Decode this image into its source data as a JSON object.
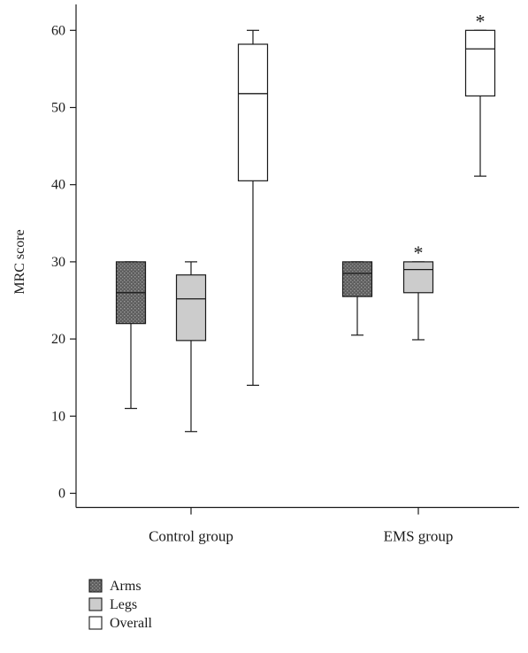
{
  "chart_data": {
    "type": "box",
    "title": "",
    "xlabel": "",
    "ylabel": "MRC score",
    "ylim": [
      0,
      63
    ],
    "yticks": [
      0,
      10,
      20,
      30,
      40,
      50,
      60
    ],
    "categories": [
      "Control group",
      "EMS group"
    ],
    "legend_position": "bottom-left",
    "series": [
      {
        "name": "Arms",
        "fill": "#6b6b6b",
        "pattern": "dotted-dark",
        "boxes": [
          {
            "category": "Control group",
            "min": 11,
            "q1": 22,
            "median": 26,
            "q3": 30,
            "max": 30
          },
          {
            "category": "EMS group",
            "min": 20.5,
            "q1": 25.5,
            "median": 28.5,
            "q3": 30,
            "max": 30
          }
        ]
      },
      {
        "name": "Legs",
        "fill": "#cccccc",
        "pattern": "solid",
        "boxes": [
          {
            "category": "Control group",
            "min": 8,
            "q1": 19.8,
            "median": 25.2,
            "q3": 28.3,
            "max": 30
          },
          {
            "category": "EMS group",
            "min": 19.9,
            "q1": 26,
            "median": 29,
            "q3": 30,
            "max": 30,
            "annotation": "*"
          }
        ]
      },
      {
        "name": "Overall",
        "fill": "#ffffff",
        "pattern": "solid",
        "boxes": [
          {
            "category": "Control group",
            "min": 14,
            "q1": 40.5,
            "median": 51.8,
            "q3": 58.2,
            "max": 60
          },
          {
            "category": "EMS group",
            "min": 41.1,
            "q1": 51.5,
            "median": 57.6,
            "q3": 60,
            "max": 60,
            "annotation": "*"
          }
        ]
      }
    ]
  }
}
